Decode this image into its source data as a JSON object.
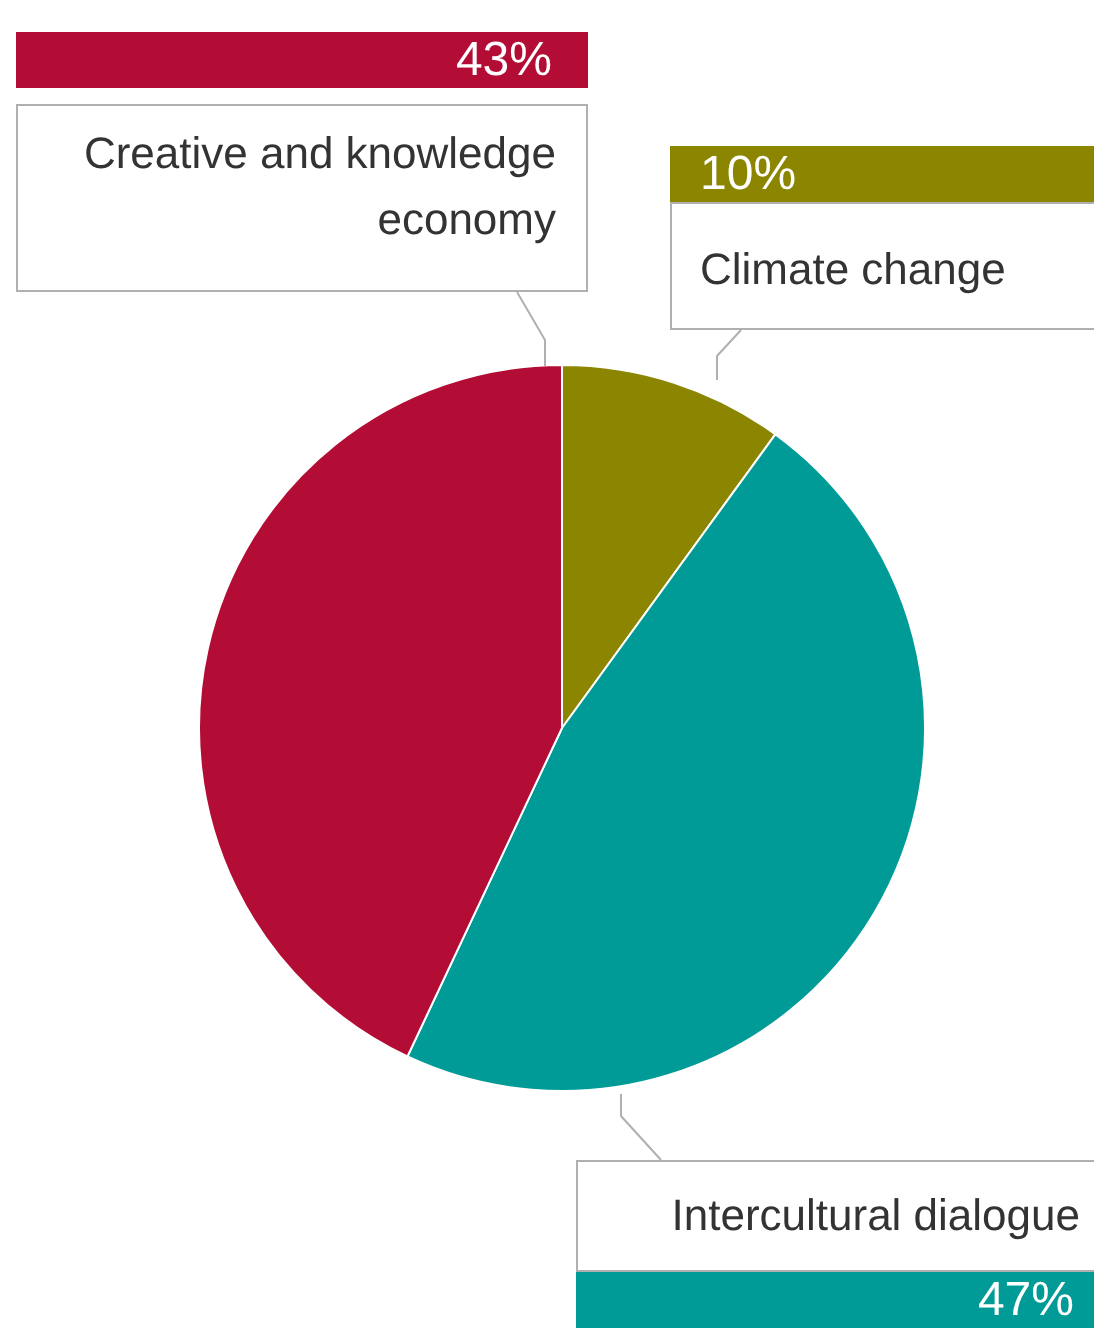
{
  "chart_data": {
    "type": "pie",
    "categories": [
      "Climate change",
      "Intercultural dialogue",
      "Creative and knowledge economy"
    ],
    "values": [
      10,
      47,
      43
    ],
    "colors": [
      "#8b8500",
      "#009b96",
      "#b30d36"
    ],
    "value_labels": [
      "10%",
      "47%",
      "43%"
    ],
    "legend": false
  }
}
